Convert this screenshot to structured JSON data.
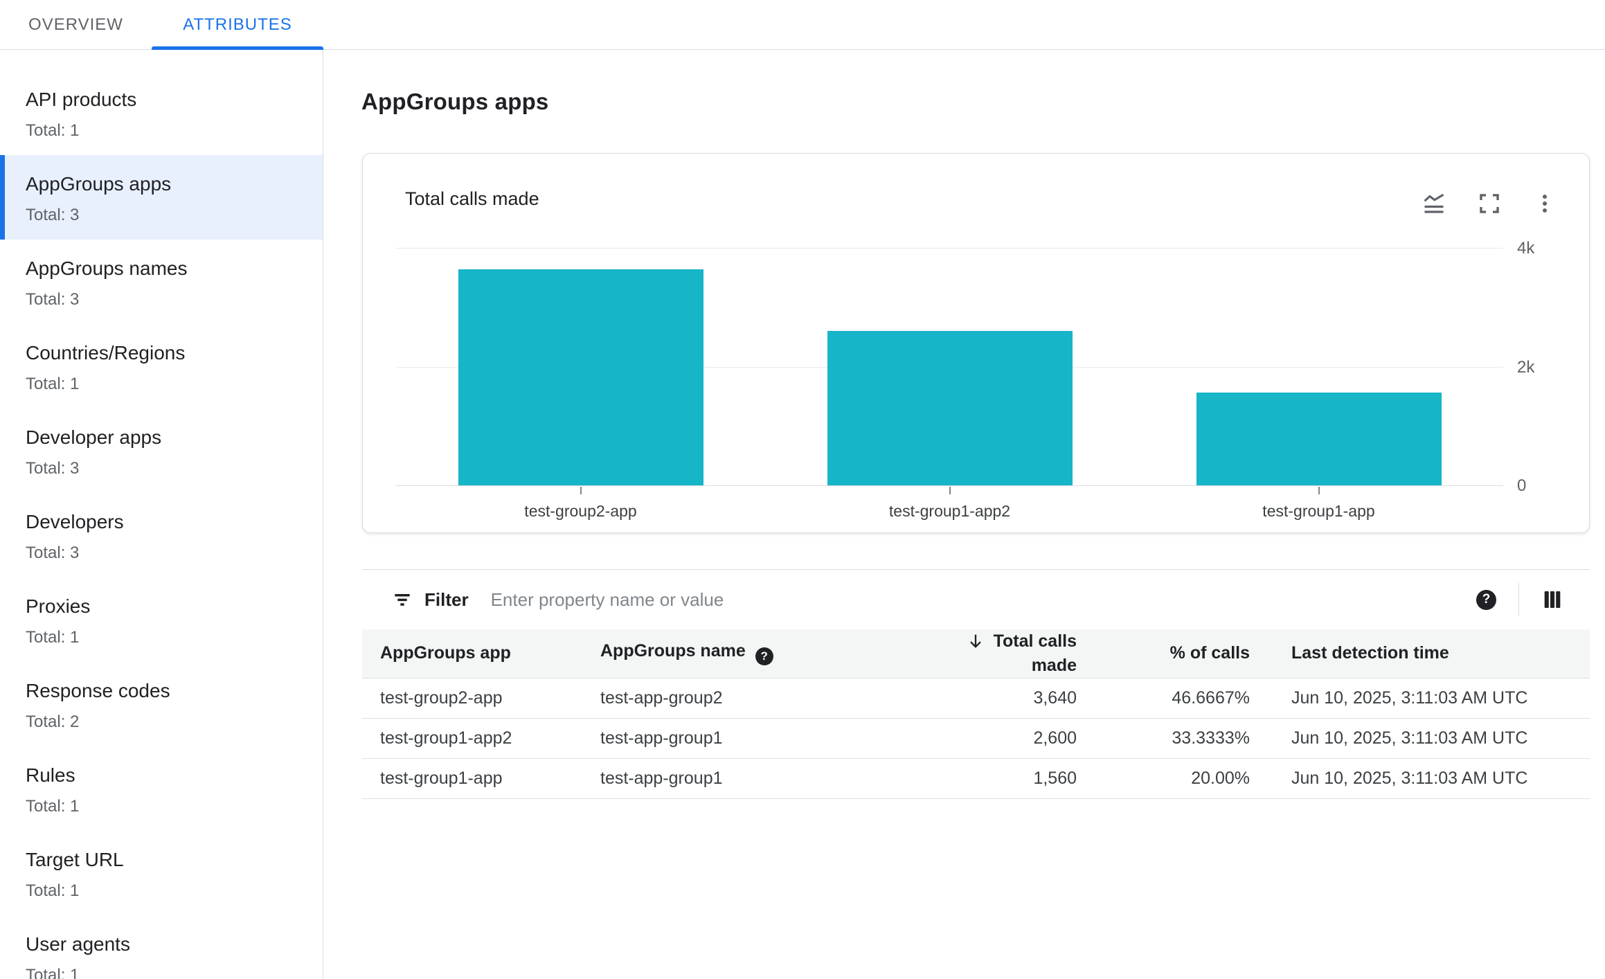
{
  "tabs": [
    {
      "label": "OVERVIEW",
      "active": false
    },
    {
      "label": "ATTRIBUTES",
      "active": true
    }
  ],
  "sidebar": {
    "items": [
      {
        "label": "API products",
        "total": "Total: 1",
        "selected": false
      },
      {
        "label": "AppGroups apps",
        "total": "Total: 3",
        "selected": true
      },
      {
        "label": "AppGroups names",
        "total": "Total: 3",
        "selected": false
      },
      {
        "label": "Countries/Regions",
        "total": "Total: 1",
        "selected": false
      },
      {
        "label": "Developer apps",
        "total": "Total: 3",
        "selected": false
      },
      {
        "label": "Developers",
        "total": "Total: 3",
        "selected": false
      },
      {
        "label": "Proxies",
        "total": "Total: 1",
        "selected": false
      },
      {
        "label": "Response codes",
        "total": "Total: 2",
        "selected": false
      },
      {
        "label": "Rules",
        "total": "Total: 1",
        "selected": false
      },
      {
        "label": "Target URL",
        "total": "Total: 1",
        "selected": false
      },
      {
        "label": "User agents",
        "total": "Total: 1",
        "selected": false
      }
    ]
  },
  "main": {
    "title": "AppGroups apps",
    "card": {
      "title": "Total calls made",
      "icons": [
        "stacked-line-chart-icon",
        "fullscreen-icon",
        "more-vert-icon"
      ]
    },
    "filter": {
      "label": "Filter",
      "placeholder": "Enter property name or value",
      "icons": [
        "filter-list-icon",
        "help-icon",
        "column-selector-icon"
      ]
    },
    "table": {
      "columns": [
        {
          "label": "AppGroups app"
        },
        {
          "label": "AppGroups name",
          "help_icon": true
        },
        {
          "label": "Total calls made",
          "sorted": "desc"
        },
        {
          "label": "% of calls"
        },
        {
          "label": "Last detection time"
        }
      ],
      "rows": [
        {
          "app": "test-group2-app",
          "name": "test-app-group2",
          "calls": "3,640",
          "pct": "46.6667%",
          "last": "Jun 10, 2025, 3:11:03 AM UTC"
        },
        {
          "app": "test-group1-app2",
          "name": "test-app-group1",
          "calls": "2,600",
          "pct": "33.3333%",
          "last": "Jun 10, 2025, 3:11:03 AM UTC"
        },
        {
          "app": "test-group1-app",
          "name": "test-app-group1",
          "calls": "1,560",
          "pct": "20.00%",
          "last": "Jun 10, 2025, 3:11:03 AM UTC"
        }
      ]
    }
  },
  "chart_data": {
    "type": "bar",
    "title": "Total calls made",
    "categories": [
      "test-group2-app",
      "test-group1-app2",
      "test-group1-app"
    ],
    "values": [
      3640,
      2600,
      1560
    ],
    "xlabel": "",
    "ylabel": "",
    "ylim": [
      0,
      4000
    ],
    "ytick_values": [
      4000,
      2000,
      0
    ],
    "ytick_labels": [
      "4k",
      "2k",
      "0"
    ],
    "yaxis_position": "right",
    "grid": "horizontal",
    "legend": "none",
    "bar_color": "#16b5c8"
  },
  "colors": {
    "accent_blue": "#1a73e8",
    "selected_bg": "#e8f0fe",
    "bar_teal": "#16b5c8",
    "text_primary": "#202124",
    "text_secondary": "#5f6368",
    "divider": "#dadce0",
    "table_header_bg": "#f4f5f5"
  },
  "help_glyph": "?"
}
